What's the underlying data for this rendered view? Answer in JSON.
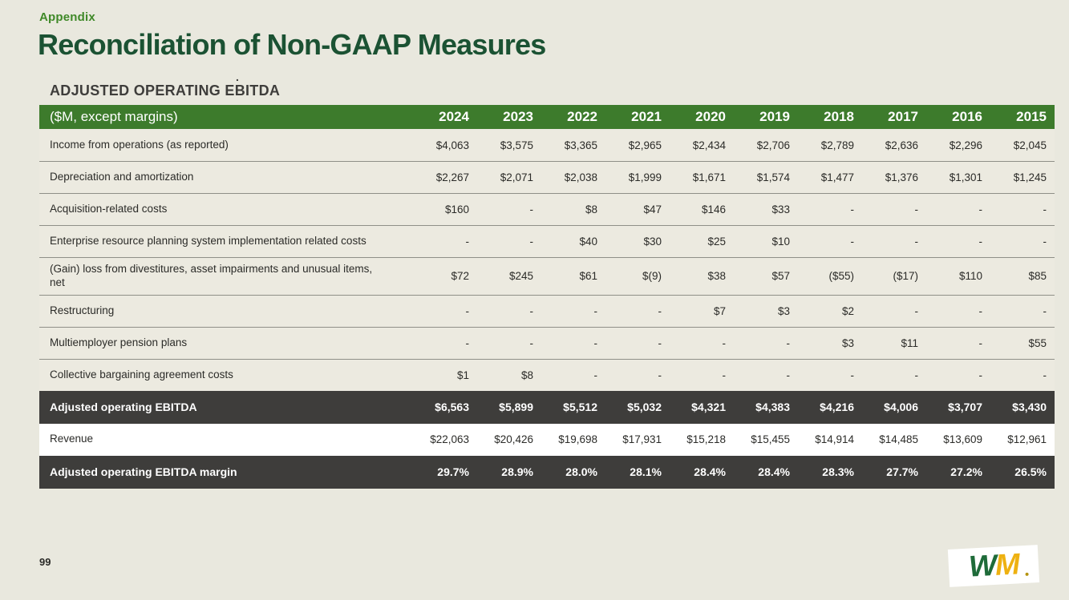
{
  "slide": {
    "eyebrow": "Appendix",
    "title": "Reconciliation of Non-GAAP Measures",
    "section_heading": "ADJUSTED OPERATING EBITDA",
    "footnote_mark": ".",
    "page_number": "99"
  },
  "colors": {
    "background": "#e9e8de",
    "header_green": "#3d7b2c",
    "title_dark_green": "#1b5233",
    "eyebrow_green": "#3f8928",
    "dark_row": "#3e3d3b",
    "light_row": "#eceae0",
    "white_row": "#ffffff",
    "divider": "#8f8f88",
    "logo_green": "#1e6b39",
    "logo_gold": "#eeb111"
  },
  "logo": {
    "letter_w": "W",
    "letter_m": "M"
  },
  "table": {
    "header_label": "($M, except margins)",
    "years": [
      "2024",
      "2023",
      "2022",
      "2021",
      "2020",
      "2019",
      "2018",
      "2017",
      "2016",
      "2015"
    ],
    "rows": [
      {
        "label": "Income from operations (as reported)",
        "style": "light",
        "values": [
          "$4,063",
          "$3,575",
          "$3,365",
          "$2,965",
          "$2,434",
          "$2,706",
          "$2,789",
          "$2,636",
          "$2,296",
          "$2,045"
        ]
      },
      {
        "label": "Depreciation and amortization",
        "style": "light",
        "values": [
          "$2,267",
          "$2,071",
          "$2,038",
          "$1,999",
          "$1,671",
          "$1,574",
          "$1,477",
          "$1,376",
          "$1,301",
          "$1,245"
        ]
      },
      {
        "label": "Acquisition-related costs",
        "style": "light",
        "values": [
          "$160",
          "-",
          "$8",
          "$47",
          "$146",
          "$33",
          "-",
          "-",
          "-",
          "-"
        ]
      },
      {
        "label": "Enterprise resource planning system implementation related costs",
        "style": "light",
        "values": [
          "-",
          "-",
          "$40",
          "$30",
          "$25",
          "$10",
          "-",
          "-",
          "-",
          "-"
        ]
      },
      {
        "label": "(Gain) loss from divestitures, asset impairments and unusual items, net",
        "style": "light",
        "values": [
          "$72",
          "$245",
          "$61",
          "$(9)",
          "$38",
          "$57",
          "($55)",
          "($17)",
          "$110",
          "$85"
        ]
      },
      {
        "label": "Restructuring",
        "style": "light",
        "values": [
          "-",
          "-",
          "-",
          "-",
          "$7",
          "$3",
          "$2",
          "-",
          "-",
          "-"
        ]
      },
      {
        "label": "Multiemployer pension plans",
        "style": "light",
        "values": [
          "-",
          "-",
          "-",
          "-",
          "-",
          "-",
          "$3",
          "$11",
          "-",
          "$55"
        ]
      },
      {
        "label": "Collective bargaining agreement costs",
        "style": "light",
        "values": [
          "$1",
          "$8",
          "-",
          "-",
          "-",
          "-",
          "-",
          "-",
          "-",
          "-"
        ]
      },
      {
        "label": "Adjusted operating EBITDA",
        "style": "dark",
        "values": [
          "$6,563",
          "$5,899",
          "$5,512",
          "$5,032",
          "$4,321",
          "$4,383",
          "$4,216",
          "$4,006",
          "$3,707",
          "$3,430"
        ]
      },
      {
        "label": "Revenue",
        "style": "white",
        "values": [
          "$22,063",
          "$20,426",
          "$19,698",
          "$17,931",
          "$15,218",
          "$15,455",
          "$14,914",
          "$14,485",
          "$13,609",
          "$12,961"
        ]
      },
      {
        "label": "Adjusted operating EBITDA margin",
        "style": "dark",
        "values": [
          "29.7%",
          "28.9%",
          "28.0%",
          "28.1%",
          "28.4%",
          "28.4%",
          "28.3%",
          "27.7%",
          "27.2%",
          "26.5%"
        ]
      }
    ]
  }
}
